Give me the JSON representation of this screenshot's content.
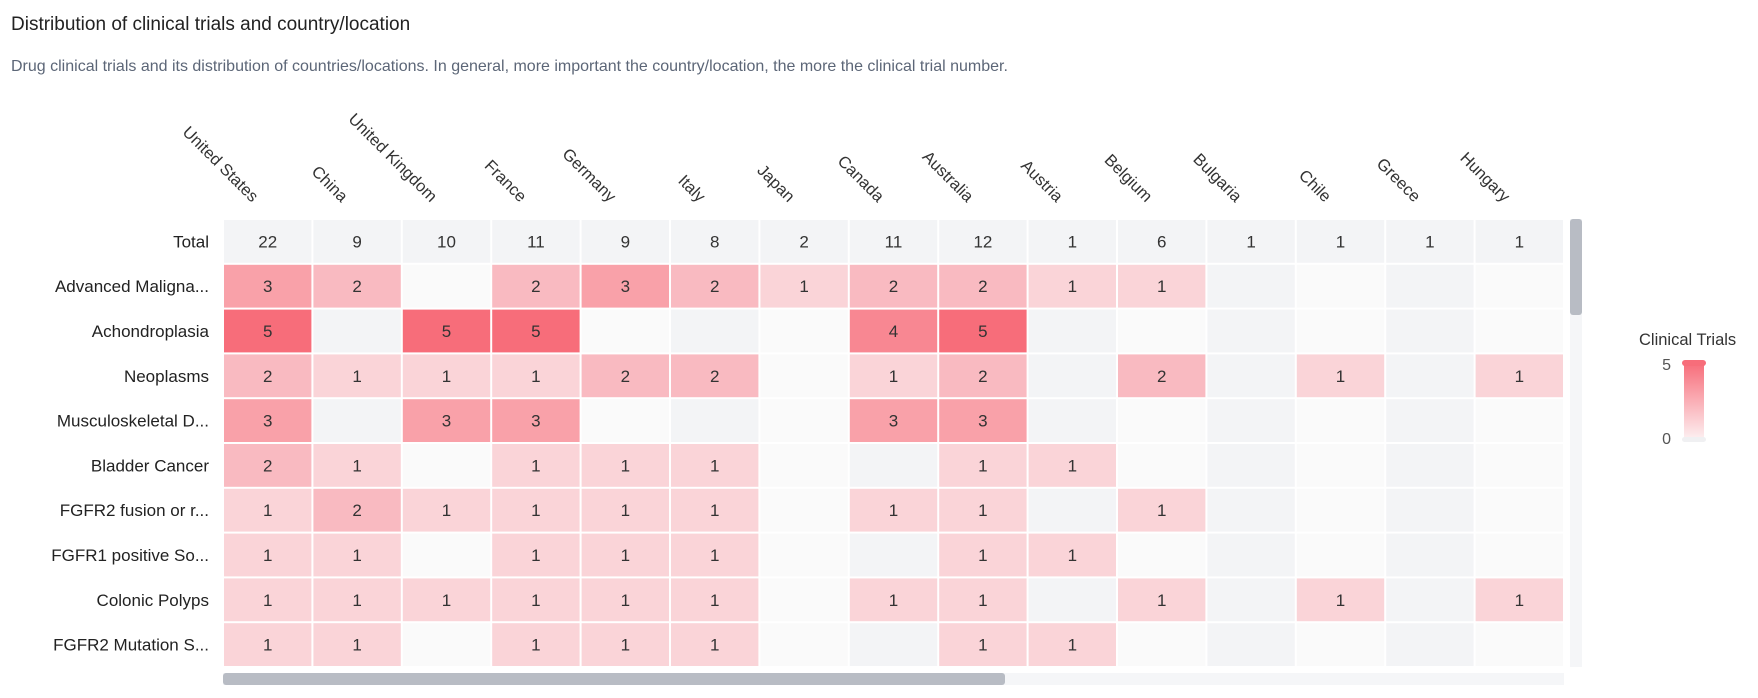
{
  "header": {
    "title": "Distribution of clinical trials and country/location",
    "subtitle": "Drug clinical trials and its distribution of countries/locations. In general, more important the country/location, the more the clinical trial number."
  },
  "chart_data": {
    "type": "heatmap",
    "columns": [
      "United States",
      "China",
      "United Kingdom",
      "France",
      "Germany",
      "Italy",
      "Japan",
      "Canada",
      "Australia",
      "Austria",
      "Belgium",
      "Bulgaria",
      "Chile",
      "Greece",
      "Hungary"
    ],
    "total_label": "Total",
    "totals": [
      22,
      9,
      10,
      11,
      9,
      8,
      2,
      11,
      12,
      1,
      6,
      1,
      1,
      1,
      1
    ],
    "rows": [
      {
        "label": "Advanced Maligna...",
        "values": [
          3,
          2,
          null,
          2,
          3,
          2,
          1,
          2,
          2,
          1,
          1,
          null,
          null,
          null,
          null
        ]
      },
      {
        "label": "Achondroplasia",
        "values": [
          5,
          null,
          5,
          5,
          null,
          null,
          null,
          4,
          5,
          null,
          null,
          null,
          null,
          null,
          null
        ]
      },
      {
        "label": "Neoplasms",
        "values": [
          2,
          1,
          1,
          1,
          2,
          2,
          null,
          1,
          2,
          null,
          2,
          null,
          1,
          null,
          1
        ]
      },
      {
        "label": "Musculoskeletal D...",
        "values": [
          3,
          null,
          3,
          3,
          null,
          null,
          null,
          3,
          3,
          null,
          null,
          null,
          null,
          null,
          null
        ]
      },
      {
        "label": "Bladder Cancer",
        "values": [
          2,
          1,
          null,
          1,
          1,
          1,
          null,
          null,
          1,
          1,
          null,
          null,
          null,
          null,
          null
        ]
      },
      {
        "label": "FGFR2 fusion or r...",
        "values": [
          1,
          2,
          1,
          1,
          1,
          1,
          null,
          1,
          1,
          null,
          1,
          null,
          null,
          null,
          null
        ]
      },
      {
        "label": "FGFR1 positive So...",
        "values": [
          1,
          1,
          null,
          1,
          1,
          1,
          null,
          null,
          1,
          1,
          null,
          null,
          null,
          null,
          null
        ]
      },
      {
        "label": "Colonic Polyps",
        "values": [
          1,
          1,
          1,
          1,
          1,
          1,
          null,
          1,
          1,
          null,
          1,
          null,
          1,
          null,
          1
        ]
      },
      {
        "label": "FGFR2 Mutation S...",
        "values": [
          1,
          1,
          null,
          1,
          1,
          1,
          null,
          null,
          1,
          1,
          null,
          null,
          null,
          null,
          null
        ]
      }
    ],
    "legend": {
      "title": "Clinical Trials",
      "min": 0,
      "max": 5
    },
    "colors": {
      "high": "#f76d7a",
      "low": "#fbeef0",
      "empty_a": "#f3f4f6",
      "empty_b": "#fafafa",
      "total_bg": "#f3f4f6",
      "scrollbar": "#b8bcc4"
    }
  }
}
